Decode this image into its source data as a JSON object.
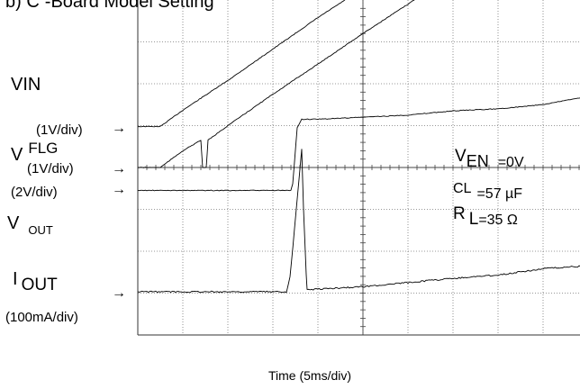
{
  "chart_data": {
    "type": "line",
    "title_partial": "b) C",
    "title_partial2": "-Board Model Setting",
    "xlabel": "Time (5ms/div)",
    "x_divisions": 10,
    "y_divisions": 8,
    "grid": true,
    "channels": [
      {
        "name": "VIN",
        "scale": "(1V/div)",
        "points_ms": [
          [
            0,
            2.35
          ],
          [
            2.5,
            2.35
          ],
          [
            5,
            2.74
          ],
          [
            10,
            3.45
          ],
          [
            15,
            4.2
          ],
          [
            20,
            4.95
          ],
          [
            25,
            5.65
          ],
          [
            30,
            6.4
          ],
          [
            35,
            7.1
          ],
          [
            40,
            7.9
          ]
        ]
      },
      {
        "name_main": "V",
        "name_sub": "FLG",
        "scale": "(1V/div)",
        "points_ms": [
          [
            0,
            1.35
          ],
          [
            2.5,
            1.35
          ],
          [
            5,
            1.75
          ],
          [
            7,
            2.0
          ],
          [
            7.2,
            1.35
          ],
          [
            7.6,
            1.35
          ],
          [
            7.8,
            2.0
          ],
          [
            10,
            2.35
          ],
          [
            15,
            3.1
          ],
          [
            20,
            3.82
          ],
          [
            25,
            4.55
          ],
          [
            30,
            5.25
          ],
          [
            35,
            6.0
          ],
          [
            40,
            6.75
          ],
          [
            45,
            7.45
          ],
          [
            50,
            8.3
          ]
        ]
      },
      {
        "name_main": "V",
        "name_sub": "OUT",
        "scale": "(2V/div)",
        "points_ms": [
          [
            0,
            0.85
          ],
          [
            17,
            0.85
          ],
          [
            17.2,
            1.0
          ],
          [
            17.7,
            2.35
          ],
          [
            18.2,
            2.55
          ],
          [
            20,
            2.55
          ],
          [
            25,
            2.6
          ],
          [
            30,
            2.65
          ],
          [
            35,
            2.75
          ],
          [
            40,
            2.8
          ],
          [
            45,
            2.9
          ],
          [
            50,
            3.1
          ]
        ]
      },
      {
        "name_main": "I",
        "name_sub": "OUT",
        "scale": "(100mA/div)",
        "points_ms": [
          [
            0,
            0
          ],
          [
            16.5,
            0
          ],
          [
            16.9,
            0.35
          ],
          [
            17.4,
            1.5
          ],
          [
            17.9,
            2.7
          ],
          [
            18.2,
            3.4
          ],
          [
            18.4,
            2.0
          ],
          [
            18.7,
            0.4
          ],
          [
            18.8,
            0.05
          ],
          [
            25,
            0.12
          ],
          [
            30,
            0.22
          ],
          [
            35,
            0.32
          ],
          [
            40,
            0.4
          ],
          [
            45,
            0.55
          ],
          [
            50,
            0.62
          ]
        ]
      }
    ],
    "annotations": [
      {
        "main": "V",
        "sub": "EN",
        "value": "=0V"
      },
      {
        "main": "CL",
        "value": "=57 µF"
      },
      {
        "main": "R",
        "sub": "L",
        "value": "=35 Ω"
      }
    ]
  },
  "labels": {
    "vin": "VIN",
    "vin_scale": "(1V/div)",
    "vflg_main": "V",
    "vflg_sub": "FLG",
    "vflg_scale": "(1V/div)",
    "vout_scale": "(2V/div)",
    "vout_main": "V",
    "vout_sub": "OUT",
    "iout_main": "I",
    "iout_sub": "OUT",
    "iout_scale": "(100mA/div)",
    "arrow": "→"
  }
}
